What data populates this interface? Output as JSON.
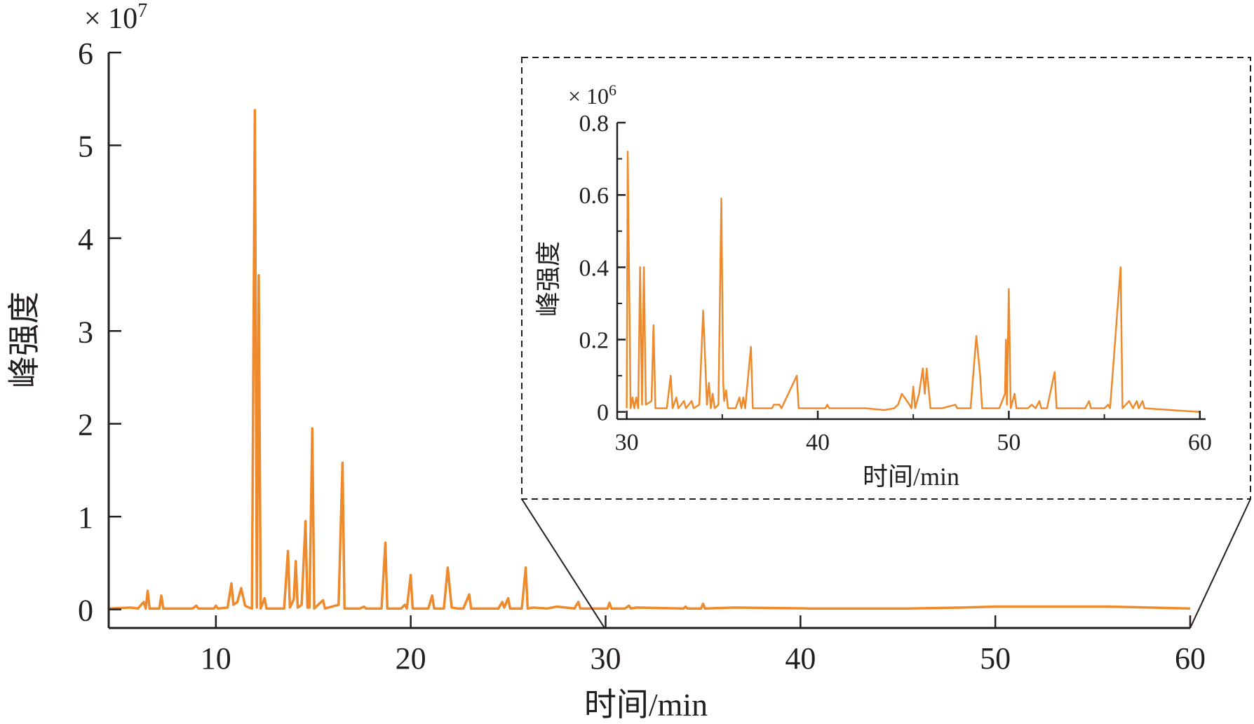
{
  "colors": {
    "series": "#ee8a2b",
    "axis": "#231f20"
  },
  "chart_data": [
    {
      "id": "main",
      "type": "line",
      "xlabel": "时间/min",
      "ylabel": "峰强度",
      "y_multiplier": {
        "base": "× 10",
        "exp": "7"
      },
      "xlim": [
        4.5,
        60
      ],
      "ylim": [
        -0.2,
        6
      ],
      "x_ticks": [
        10,
        20,
        30,
        40,
        50,
        60
      ],
      "y_ticks": [
        0,
        1,
        2,
        3,
        4,
        5,
        6
      ],
      "x_tick_labels": [
        "10",
        "20",
        "30",
        "40",
        "50",
        "60"
      ],
      "y_tick_labels": [
        "0",
        "1",
        "2",
        "3",
        "4",
        "5",
        "6"
      ],
      "series": [
        {
          "values": [
            [
              4.5,
              0.01
            ],
            [
              5.6,
              0.02
            ],
            [
              6.0,
              0.01
            ],
            [
              6.3,
              0.08
            ],
            [
              6.4,
              0.01
            ],
            [
              6.5,
              0.2
            ],
            [
              6.6,
              0.01
            ],
            [
              7.1,
              0.01
            ],
            [
              7.2,
              0.15
            ],
            [
              7.3,
              0.01
            ],
            [
              8.8,
              0.01
            ],
            [
              9.0,
              0.04
            ],
            [
              9.1,
              0.01
            ],
            [
              9.9,
              0.01
            ],
            [
              10.0,
              0.04
            ],
            [
              10.1,
              0.01
            ],
            [
              10.6,
              0.02
            ],
            [
              10.8,
              0.28
            ],
            [
              10.9,
              0.05
            ],
            [
              11.1,
              0.08
            ],
            [
              11.3,
              0.23
            ],
            [
              11.5,
              0.04
            ],
            [
              11.7,
              0.02
            ],
            [
              11.85,
              0.01
            ],
            [
              12.0,
              5.38
            ],
            [
              12.1,
              0.02
            ],
            [
              12.2,
              3.6
            ],
            [
              12.3,
              0.01
            ],
            [
              12.5,
              0.12
            ],
            [
              12.6,
              0.01
            ],
            [
              13.3,
              0.01
            ],
            [
              13.5,
              0.01
            ],
            [
              13.7,
              0.63
            ],
            [
              13.8,
              0.02
            ],
            [
              14.0,
              0.11
            ],
            [
              14.1,
              0.52
            ],
            [
              14.2,
              0.02
            ],
            [
              14.4,
              0.05
            ],
            [
              14.6,
              0.95
            ],
            [
              14.7,
              0.02
            ],
            [
              14.8,
              0.02
            ],
            [
              14.95,
              1.95
            ],
            [
              15.05,
              0.01
            ],
            [
              15.5,
              0.1
            ],
            [
              15.6,
              0.01
            ],
            [
              16.3,
              0.05
            ],
            [
              16.5,
              1.58
            ],
            [
              16.6,
              0.01
            ],
            [
              17.4,
              0.01
            ],
            [
              17.6,
              0.03
            ],
            [
              17.7,
              0.01
            ],
            [
              18.5,
              0.01
            ],
            [
              18.7,
              0.72
            ],
            [
              18.8,
              0.01
            ],
            [
              19.5,
              0.01
            ],
            [
              19.7,
              0.05
            ],
            [
              19.8,
              0.01
            ],
            [
              20.0,
              0.37
            ],
            [
              20.1,
              0.01
            ],
            [
              20.9,
              0.01
            ],
            [
              21.1,
              0.15
            ],
            [
              21.2,
              0.01
            ],
            [
              21.7,
              0.01
            ],
            [
              21.9,
              0.45
            ],
            [
              22.1,
              0.02
            ],
            [
              22.4,
              0.01
            ],
            [
              22.7,
              0.01
            ],
            [
              23.0,
              0.16
            ],
            [
              23.1,
              0.01
            ],
            [
              24.5,
              0.01
            ],
            [
              24.7,
              0.08
            ],
            [
              24.8,
              0.02
            ],
            [
              25.0,
              0.12
            ],
            [
              25.1,
              0.01
            ],
            [
              25.7,
              0.01
            ],
            [
              25.9,
              0.45
            ],
            [
              26.0,
              0.01
            ],
            [
              26.3,
              0.02
            ],
            [
              27.0,
              0.01
            ],
            [
              27.5,
              0.03
            ],
            [
              28.4,
              0.01
            ],
            [
              28.6,
              0.08
            ],
            [
              28.7,
              0.01
            ],
            [
              30.1,
              0.01
            ],
            [
              30.2,
              0.07
            ],
            [
              30.3,
              0.01
            ],
            [
              31.0,
              0.01
            ],
            [
              31.2,
              0.04
            ],
            [
              31.3,
              0.01
            ],
            [
              31.6,
              0.02
            ],
            [
              34.0,
              0.01
            ],
            [
              34.1,
              0.03
            ],
            [
              34.2,
              0.01
            ],
            [
              34.9,
              0.01
            ],
            [
              35.0,
              0.06
            ],
            [
              35.1,
              0.01
            ],
            [
              36.6,
              0.02
            ],
            [
              40.6,
              0.01
            ],
            [
              45.5,
              0.01
            ],
            [
              48.3,
              0.02
            ],
            [
              50.0,
              0.03
            ],
            [
              55.8,
              0.03
            ],
            [
              60.0,
              0.01
            ]
          ]
        }
      ]
    },
    {
      "id": "inset",
      "type": "line",
      "xlabel": "时间/min",
      "ylabel": "峰强度",
      "y_multiplier": {
        "base": "× 10",
        "exp": "6"
      },
      "xlim": [
        29.5,
        60.3
      ],
      "ylim": [
        -0.02,
        0.8
      ],
      "x_ticks": [
        30,
        40,
        50,
        60
      ],
      "y_ticks": [
        0,
        0.2,
        0.4,
        0.6,
        0.8
      ],
      "x_tick_labels": [
        "30",
        "40",
        "50",
        "60"
      ],
      "y_tick_labels": [
        "0",
        "0.2",
        "0.4",
        "0.6",
        "0.8"
      ],
      "series": [
        {
          "values": [
            [
              30.0,
              0.01
            ],
            [
              30.05,
              0.72
            ],
            [
              30.2,
              0.01
            ],
            [
              30.3,
              0.04
            ],
            [
              30.4,
              0.01
            ],
            [
              30.5,
              0.04
            ],
            [
              30.6,
              0.01
            ],
            [
              30.7,
              0.4
            ],
            [
              30.8,
              0.02
            ],
            [
              30.9,
              0.4
            ],
            [
              31.0,
              0.02
            ],
            [
              31.3,
              0.03
            ],
            [
              31.4,
              0.24
            ],
            [
              31.5,
              0.01
            ],
            [
              31.9,
              0.01
            ],
            [
              32.1,
              0.01
            ],
            [
              32.3,
              0.1
            ],
            [
              32.4,
              0.01
            ],
            [
              32.6,
              0.04
            ],
            [
              32.7,
              0.01
            ],
            [
              33.0,
              0.03
            ],
            [
              33.1,
              0.01
            ],
            [
              33.4,
              0.03
            ],
            [
              33.5,
              0.01
            ],
            [
              33.8,
              0.02
            ],
            [
              34.0,
              0.28
            ],
            [
              34.2,
              0.02
            ],
            [
              34.3,
              0.08
            ],
            [
              34.4,
              0.01
            ],
            [
              34.5,
              0.05
            ],
            [
              34.6,
              0.01
            ],
            [
              34.8,
              0.02
            ],
            [
              34.95,
              0.59
            ],
            [
              35.05,
              0.08
            ],
            [
              35.1,
              0.03
            ],
            [
              35.2,
              0.06
            ],
            [
              35.3,
              0.01
            ],
            [
              35.7,
              0.01
            ],
            [
              35.9,
              0.04
            ],
            [
              36.0,
              0.01
            ],
            [
              36.1,
              0.04
            ],
            [
              36.2,
              0.01
            ],
            [
              36.5,
              0.18
            ],
            [
              36.6,
              0.01
            ],
            [
              37.6,
              0.01
            ],
            [
              37.7,
              0.02
            ],
            [
              38.0,
              0.02
            ],
            [
              38.1,
              0.01
            ],
            [
              38.9,
              0.1
            ],
            [
              39.0,
              0.01
            ],
            [
              40.4,
              0.01
            ],
            [
              40.5,
              0.02
            ],
            [
              40.6,
              0.01
            ],
            [
              42.5,
              0.01
            ],
            [
              43.5,
              0.005
            ],
            [
              44.0,
              0.01
            ],
            [
              44.2,
              0.02
            ],
            [
              44.4,
              0.05
            ],
            [
              44.8,
              0.02
            ],
            [
              44.9,
              0.01
            ],
            [
              45.0,
              0.07
            ],
            [
              45.1,
              0.01
            ],
            [
              45.3,
              0.05
            ],
            [
              45.5,
              0.12
            ],
            [
              45.6,
              0.05
            ],
            [
              45.7,
              0.12
            ],
            [
              45.9,
              0.01
            ],
            [
              46.5,
              0.01
            ],
            [
              47.2,
              0.02
            ],
            [
              47.3,
              0.01
            ],
            [
              47.8,
              0.01
            ],
            [
              48.0,
              0.01
            ],
            [
              48.3,
              0.21
            ],
            [
              48.5,
              0.1
            ],
            [
              48.6,
              0.01
            ],
            [
              49.5,
              0.01
            ],
            [
              49.8,
              0.05
            ],
            [
              49.85,
              0.2
            ],
            [
              49.9,
              0.02
            ],
            [
              50.0,
              0.34
            ],
            [
              50.1,
              0.01
            ],
            [
              50.3,
              0.05
            ],
            [
              50.4,
              0.01
            ],
            [
              51.0,
              0.01
            ],
            [
              51.2,
              0.02
            ],
            [
              51.4,
              0.01
            ],
            [
              51.6,
              0.03
            ],
            [
              51.7,
              0.01
            ],
            [
              52.0,
              0.01
            ],
            [
              52.4,
              0.11
            ],
            [
              52.5,
              0.01
            ],
            [
              53.0,
              0.01
            ],
            [
              54.0,
              0.01
            ],
            [
              54.2,
              0.03
            ],
            [
              54.3,
              0.01
            ],
            [
              55.0,
              0.01
            ],
            [
              55.2,
              0.02
            ],
            [
              55.3,
              0.01
            ],
            [
              55.85,
              0.4
            ],
            [
              55.95,
              0.01
            ],
            [
              56.3,
              0.03
            ],
            [
              56.5,
              0.01
            ],
            [
              56.7,
              0.03
            ],
            [
              56.8,
              0.01
            ],
            [
              57.0,
              0.03
            ],
            [
              57.1,
              0.01
            ],
            [
              58.5,
              0.005
            ],
            [
              60.0,
              0.0
            ]
          ]
        }
      ]
    }
  ]
}
